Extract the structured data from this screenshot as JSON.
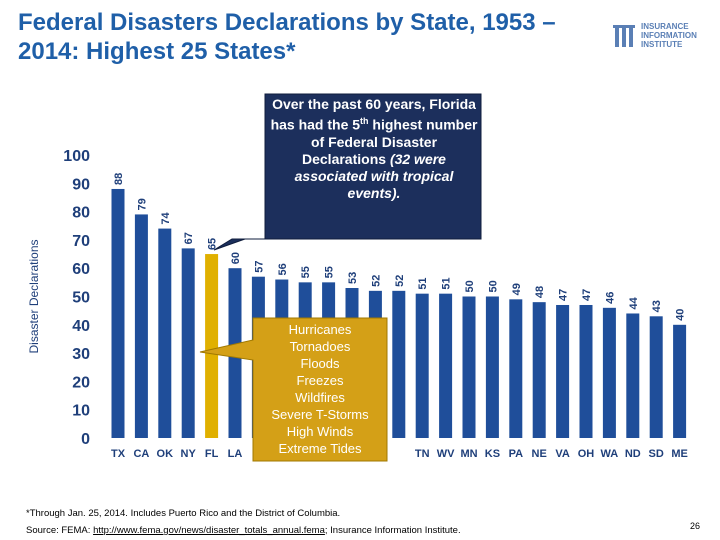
{
  "chart_data": {
    "type": "bar",
    "title": "Federal Disasters Declarations by State, 1953 – 2014: Highest 25 States*",
    "y_label": "Disaster Declarations",
    "categories": [
      "TX",
      "CA",
      "OK",
      "NY",
      "FL",
      "LA",
      null,
      null,
      null,
      null,
      null,
      null,
      null,
      "TN",
      "WV",
      "MN",
      "KS",
      "PA",
      "NE",
      "VA",
      "OH",
      "WA",
      "ND",
      "SD",
      "ME"
    ],
    "values": [
      88,
      79,
      74,
      67,
      65,
      60,
      57,
      56,
      55,
      55,
      53,
      52,
      52,
      51,
      51,
      50,
      50,
      49,
      48,
      47,
      47,
      46,
      44,
      43,
      40
    ],
    "colors": [
      "#1f4e9a",
      "#1f4e9a",
      "#1f4e9a",
      "#1f4e9a",
      "#e0b000",
      "#1f4e9a",
      "#1f4e9a",
      "#1f4e9a",
      "#1f4e9a",
      "#1f4e9a",
      "#1f4e9a",
      "#1f4e9a",
      "#1f4e9a",
      "#1f4e9a",
      "#1f4e9a",
      "#1f4e9a",
      "#1f4e9a",
      "#1f4e9a",
      "#1f4e9a",
      "#1f4e9a",
      "#1f4e9a",
      "#1f4e9a",
      "#1f4e9a",
      "#1f4e9a",
      "#1f4e9a"
    ],
    "ylim": [
      0,
      100
    ],
    "yticks": [
      0,
      10,
      20,
      30,
      40,
      50,
      60,
      70,
      80,
      90,
      100
    ],
    "grid": false,
    "annotations": {
      "florida": [
        "Over the past 60 years, Florida has had the 5",
        "th",
        " highest number of Federal Disaster Declarations ",
        "(32 were associated with tropical events)."
      ],
      "hazards": [
        "Hurricanes",
        "Tornadoes",
        "Floods",
        "Freezes",
        "Wildfires",
        "Severe T-Storms",
        "High Winds",
        "Extreme Tides"
      ]
    }
  },
  "logo": [
    "INSURANCE",
    "INFORMATION",
    "INSTITUTE"
  ],
  "footnote": "*Through Jan. 25, 2014. Includes Puerto Rico and the District of Columbia.",
  "source": {
    "prefix": "Source:  FEMA: ",
    "link": "http://www.fema.gov/news/disaster_totals_annual.fema",
    "suffix": "; Insurance Information Institute."
  },
  "page_number": "26"
}
